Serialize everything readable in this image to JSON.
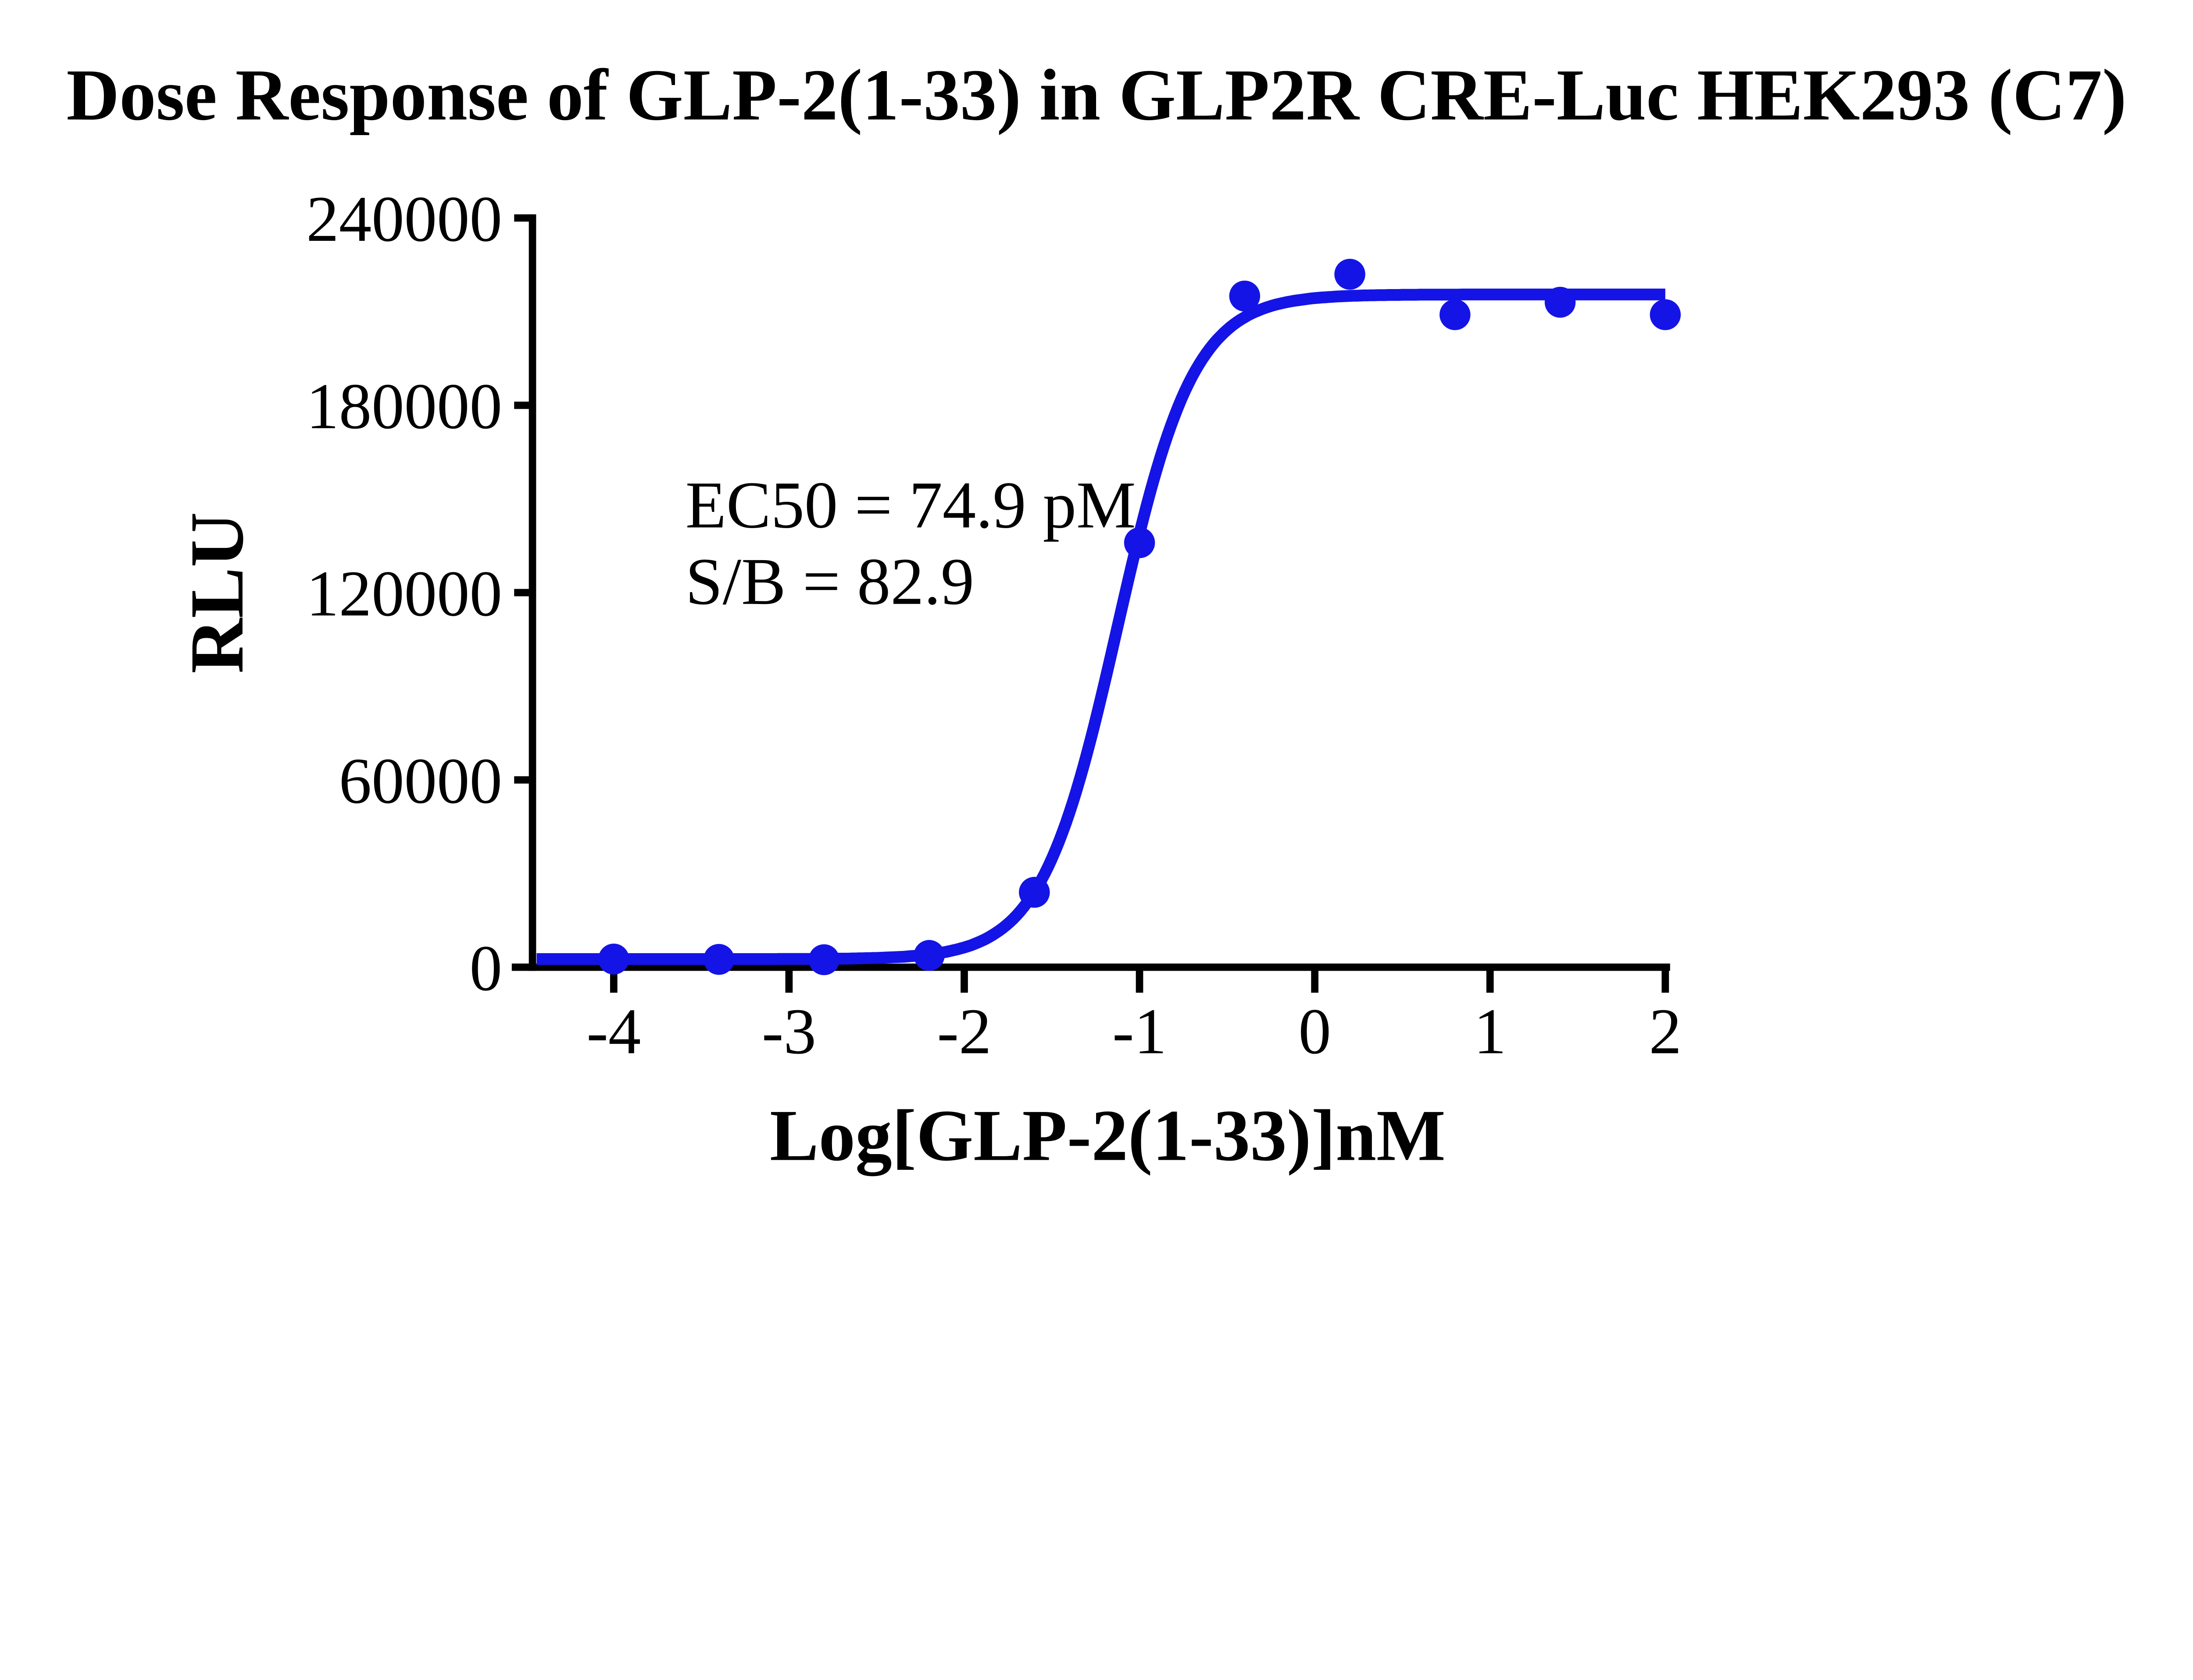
{
  "title": "Dose Response of GLP-2(1-33) in GLP2R CRE-Luc HEK293 (C7)",
  "chart_data": {
    "type": "scatter",
    "title": "Dose Response of GLP-2(1-33) in GLP2R CRE-Luc HEK293 (C7)",
    "xlabel": "Log[GLP-2(1-33)]nM",
    "ylabel": "RLU",
    "series": [
      {
        "name": "GLP-2(1-33)",
        "x": [
          -4.0,
          -3.4,
          -2.8,
          -2.2,
          -1.6,
          -1.0,
          -0.4,
          0.2,
          0.8,
          1.4,
          2.0
        ],
        "values": [
          2600,
          2500,
          2400,
          3800,
          24000,
          136000,
          215000,
          222000,
          209000,
          213000,
          209000
        ]
      }
    ],
    "curve_fit": {
      "model": "four-parameter-logistic",
      "bottom": 2600,
      "top": 215500,
      "log_ec50": -1.1255,
      "hill_slope": 2.0,
      "draw_range": [
        -4.44,
        2.0
      ]
    },
    "x_ticks": [
      -4,
      -3,
      -2,
      -1,
      0,
      1,
      2
    ],
    "y_ticks": [
      0,
      60000,
      120000,
      180000,
      240000
    ],
    "xlim": [
      -4.47,
      2.03
    ],
    "ylim": [
      0,
      240000
    ],
    "grid": false,
    "legend": false,
    "annotations": [
      "EC50 = 74.9 pM",
      "S/B = 82.9"
    ],
    "series_color": "#1414E6",
    "axis_color": "#000000",
    "background_color": "#FFFFFF"
  }
}
